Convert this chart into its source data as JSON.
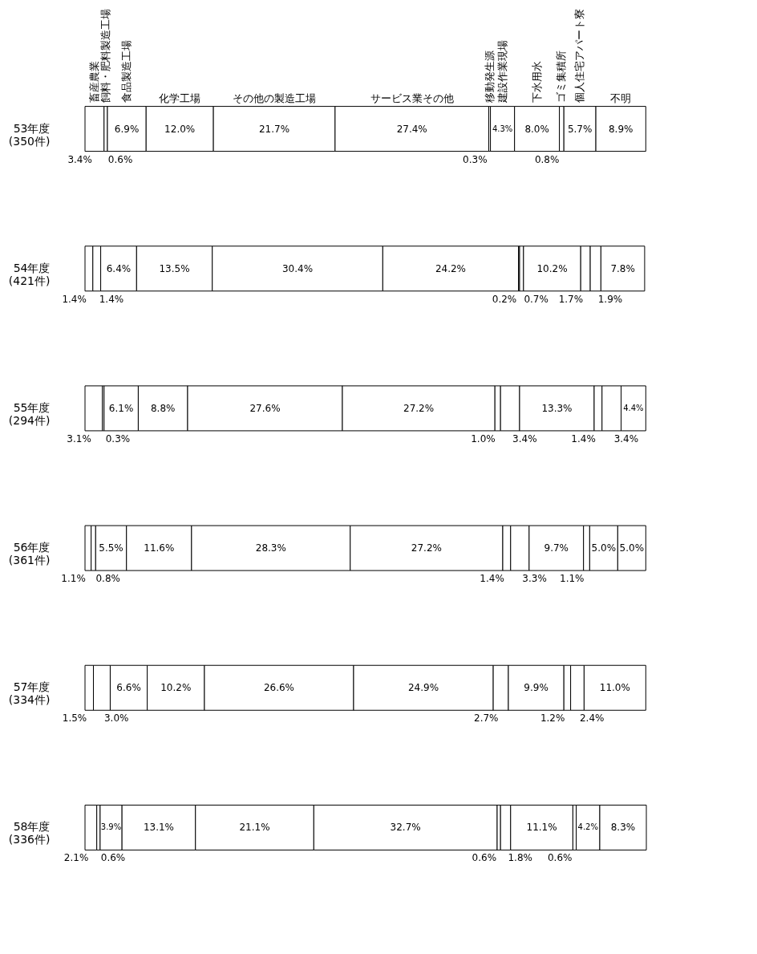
{
  "chart_data": {
    "type": "bar",
    "orientation": "horizontal",
    "stacked": true,
    "legend": false,
    "grid": false,
    "categories": [
      "53年度\n(350件)",
      "54年度\n(421件)",
      "55年度\n(294件)",
      "56年度\n(361件)",
      "57年度\n(334件)",
      "58年度\n(336件)"
    ],
    "series": [
      {
        "name": "畜産農業",
        "color": "#ffffff",
        "values": [
          3.4,
          1.4,
          3.1,
          1.1,
          1.5,
          2.1
        ],
        "value_labels": [
          "3.4%",
          "1.4%",
          "3.1%",
          "1.1%",
          "1.5%",
          "2.1%"
        ]
      },
      {
        "name": "飼料・肥料製造工場",
        "color": "#ffffff",
        "values": [
          0.6,
          1.4,
          0.3,
          0.8,
          3.0,
          0.6
        ],
        "value_labels": [
          "0.6%",
          "1.4%",
          "0.3%",
          "0.8%",
          "3.0%",
          "0.6%"
        ]
      },
      {
        "name": "食品製造工場",
        "color": "#ffffff",
        "values": [
          6.9,
          6.4,
          6.1,
          5.5,
          6.6,
          3.9
        ],
        "value_labels": [
          "6.9%",
          "6.4%",
          "6.1%",
          "5.5%",
          "6.6%",
          "3.9%"
        ]
      },
      {
        "name": "化学工場",
        "color": "#ffffff",
        "values": [
          12.0,
          13.5,
          8.8,
          11.6,
          10.2,
          13.1
        ],
        "value_labels": [
          "12.0%",
          "13.5%",
          "8.8%",
          "11.6%",
          "10.2%",
          "13.1%"
        ]
      },
      {
        "name": "その他の製造工場",
        "color": "#ffffff",
        "values": [
          21.7,
          30.4,
          27.6,
          28.3,
          26.6,
          21.1
        ],
        "value_labels": [
          "21.7%",
          "30.4%",
          "27.6%",
          "28.3%",
          "26.6%",
          "21.1%"
        ]
      },
      {
        "name": "サービス業その他",
        "color": "#ffffff",
        "values": [
          27.4,
          24.2,
          27.2,
          27.2,
          24.9,
          32.7
        ],
        "value_labels": [
          "27.4%",
          "24.2%",
          "27.2%",
          "27.2%",
          "24.9%",
          "32.7%"
        ]
      },
      {
        "name": "移動発生源",
        "color": "#ffffff",
        "values": [
          0.3,
          0.2,
          1.0,
          1.4,
          2.7,
          0.6
        ],
        "value_labels": [
          "0.3%",
          "0.2%",
          "1.0%",
          "1.4%",
          "2.7%",
          "0.6%"
        ]
      },
      {
        "name": "建設作業現場",
        "color": "#ffffff",
        "values": [
          4.3,
          0.7,
          3.4,
          3.3,
          null,
          1.8
        ],
        "value_labels": [
          "4.3%",
          "0.7%",
          "3.4%",
          "3.3%",
          null,
          "1.8%"
        ]
      },
      {
        "name": "下水用水",
        "color": "#ffffff",
        "values": [
          8.0,
          10.2,
          13.3,
          9.7,
          9.9,
          11.1
        ],
        "value_labels": [
          "8.0%",
          "10.2%",
          "13.3%",
          "9.7%",
          "9.9%",
          "11.1%"
        ]
      },
      {
        "name": "ゴミ集積所",
        "color": "#ffffff",
        "values": [
          0.8,
          1.7,
          1.4,
          1.1,
          1.2,
          0.6
        ],
        "value_labels": [
          "0.8%",
          "1.7%",
          "1.4%",
          "1.1%",
          "1.2%",
          "0.6%"
        ]
      },
      {
        "name": "個人住宅アパート寮",
        "color": "#ffffff",
        "values": [
          5.7,
          1.9,
          3.4,
          5.0,
          2.4,
          4.2
        ],
        "value_labels": [
          "5.7%",
          "1.9%",
          "3.4%",
          "5.0%",
          "2.4%",
          "4.2%"
        ]
      },
      {
        "name": "不明",
        "color": "#ffffff",
        "values": [
          8.9,
          7.8,
          4.4,
          5.0,
          11.0,
          8.3
        ],
        "value_labels": [
          "8.9%",
          "7.8%",
          "4.4%",
          "5.0%",
          "11.0%",
          "8.3%"
        ]
      }
    ]
  }
}
